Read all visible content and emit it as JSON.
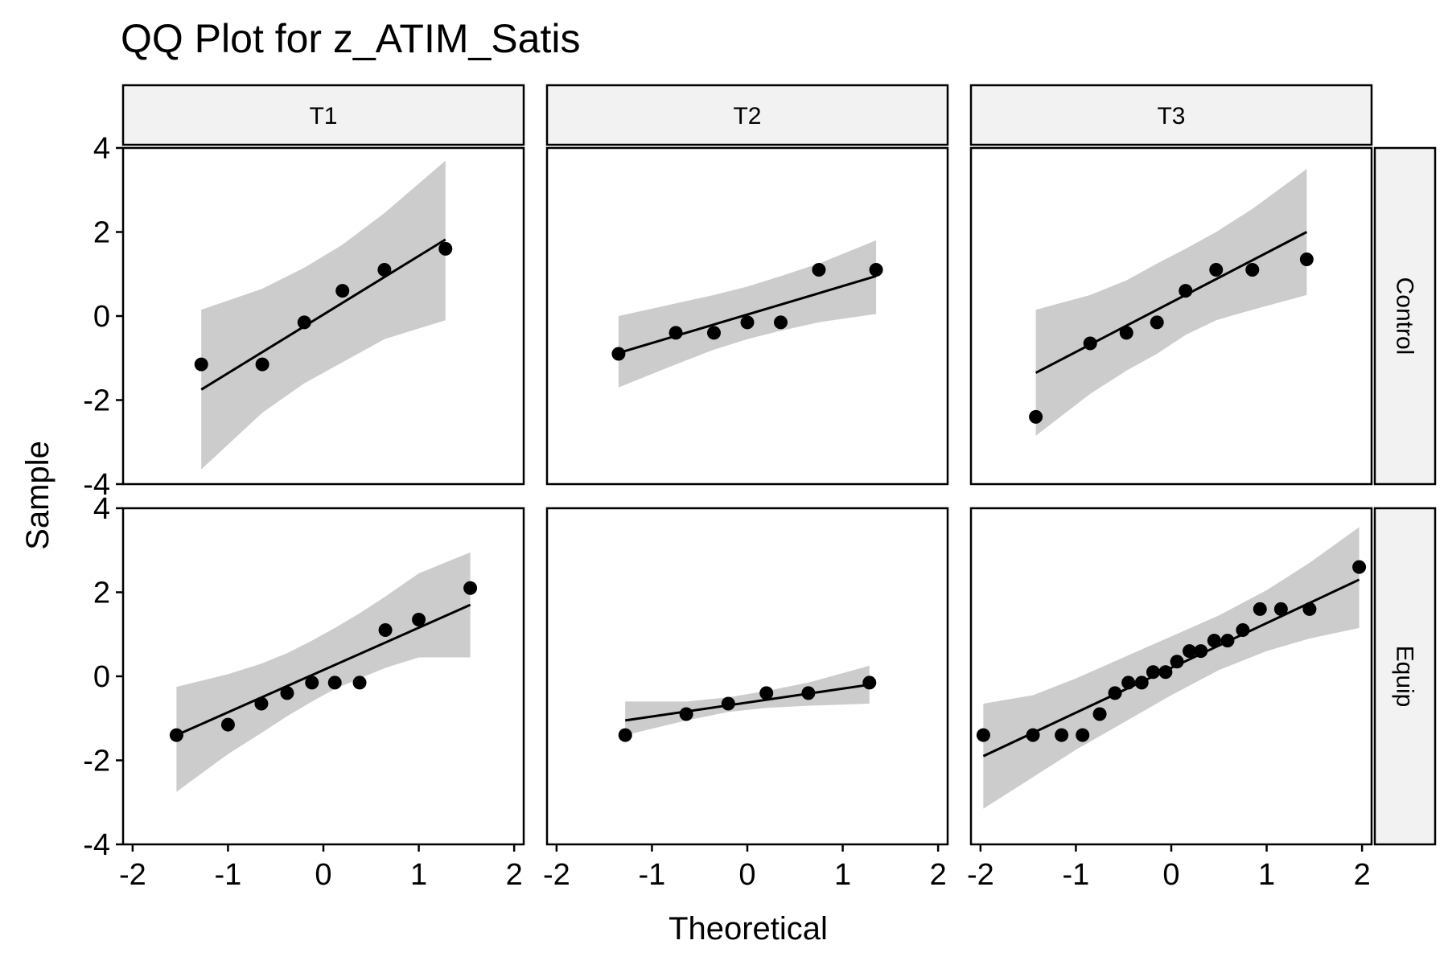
{
  "chart_data": {
    "type": "scatter",
    "title": "QQ Plot for z_ATIM_Satis",
    "xlabel": "Theoretical",
    "ylabel": "Sample",
    "xlim": [
      -2.1,
      2.1
    ],
    "ylim": [
      -4,
      4
    ],
    "x_ticks": [
      -2,
      -1,
      0,
      1,
      2
    ],
    "x_tick_labels": [
      "-2",
      "-1",
      "0",
      "1",
      "2"
    ],
    "y_ticks": [
      -4,
      -2,
      0,
      2,
      4
    ],
    "y_tick_labels": [
      "-4",
      "-2",
      "0",
      "2",
      "4"
    ],
    "column_facets": [
      "T1",
      "T2",
      "T3"
    ],
    "row_facets": [
      "Control",
      "Equip"
    ],
    "grid": false,
    "colors": {
      "points": "#000000",
      "line": "#000000",
      "band": "#cccccc",
      "strip": "#f2f2f2"
    },
    "panels": [
      {
        "row": "Control",
        "col": "T1",
        "points": [
          [
            -1.28,
            -1.15
          ],
          [
            -0.64,
            -1.15
          ],
          [
            -0.2,
            -0.15
          ],
          [
            0.2,
            0.6
          ],
          [
            0.64,
            1.1
          ],
          [
            1.28,
            1.6
          ]
        ],
        "line": [
          [
            -1.28,
            -1.75
          ],
          [
            1.28,
            1.82
          ]
        ],
        "band_x": [
          -1.28,
          -0.64,
          -0.2,
          0.2,
          0.64,
          1.28
        ],
        "band_lower": [
          -3.65,
          -2.3,
          -1.6,
          -1.1,
          -0.55,
          -0.1
        ],
        "band_upper": [
          0.15,
          0.65,
          1.15,
          1.7,
          2.45,
          3.7
        ]
      },
      {
        "row": "Control",
        "col": "T2",
        "points": [
          [
            -1.35,
            -0.9
          ],
          [
            -0.75,
            -0.4
          ],
          [
            -0.35,
            -0.4
          ],
          [
            0.0,
            -0.15
          ],
          [
            0.35,
            -0.15
          ],
          [
            0.75,
            1.1
          ],
          [
            1.35,
            1.1
          ]
        ],
        "line": [
          [
            -1.35,
            -0.88
          ],
          [
            1.35,
            0.95
          ]
        ],
        "band_x": [
          -1.35,
          -0.75,
          -0.35,
          0.0,
          0.35,
          0.75,
          1.35
        ],
        "band_lower": [
          -1.7,
          -1.15,
          -0.8,
          -0.55,
          -0.35,
          -0.15,
          0.05
        ],
        "band_upper": [
          0.0,
          0.3,
          0.5,
          0.7,
          0.95,
          1.25,
          1.8
        ]
      },
      {
        "row": "Control",
        "col": "T3",
        "points": [
          [
            -1.42,
            -2.4
          ],
          [
            -0.85,
            -0.65
          ],
          [
            -0.47,
            -0.4
          ],
          [
            -0.15,
            -0.15
          ],
          [
            0.15,
            0.6
          ],
          [
            0.47,
            1.1
          ],
          [
            0.85,
            1.1
          ],
          [
            1.42,
            1.35
          ]
        ],
        "line": [
          [
            -1.42,
            -1.35
          ],
          [
            1.42,
            2.0
          ]
        ],
        "band_x": [
          -1.42,
          -0.85,
          -0.47,
          -0.15,
          0.15,
          0.47,
          0.85,
          1.42
        ],
        "band_lower": [
          -2.85,
          -1.85,
          -1.3,
          -0.9,
          -0.45,
          -0.1,
          0.15,
          0.5
        ],
        "band_upper": [
          0.15,
          0.5,
          0.85,
          1.25,
          1.6,
          2.0,
          2.55,
          3.5
        ]
      },
      {
        "row": "Equip",
        "col": "T1",
        "points": [
          [
            -1.54,
            -1.4
          ],
          [
            -1.0,
            -1.15
          ],
          [
            -0.65,
            -0.65
          ],
          [
            -0.38,
            -0.4
          ],
          [
            -0.12,
            -0.15
          ],
          [
            0.12,
            -0.15
          ],
          [
            0.38,
            -0.15
          ],
          [
            0.65,
            1.1
          ],
          [
            1.0,
            1.35
          ],
          [
            1.54,
            2.1
          ]
        ],
        "line": [
          [
            -1.54,
            -1.4
          ],
          [
            1.54,
            1.7
          ]
        ],
        "band_x": [
          -1.54,
          -1.0,
          -0.65,
          -0.38,
          -0.12,
          0.12,
          0.38,
          0.65,
          1.0,
          1.54
        ],
        "band_lower": [
          -2.75,
          -1.85,
          -1.35,
          -0.95,
          -0.6,
          -0.3,
          -0.05,
          0.2,
          0.45,
          0.45
        ],
        "band_upper": [
          -0.25,
          0.05,
          0.3,
          0.55,
          0.85,
          1.15,
          1.5,
          1.9,
          2.45,
          2.95
        ]
      },
      {
        "row": "Equip",
        "col": "T2",
        "points": [
          [
            -1.28,
            -1.4
          ],
          [
            -0.64,
            -0.9
          ],
          [
            -0.2,
            -0.65
          ],
          [
            0.2,
            -0.4
          ],
          [
            0.64,
            -0.4
          ],
          [
            1.28,
            -0.15
          ]
        ],
        "line": [
          [
            -1.28,
            -1.05
          ],
          [
            1.28,
            -0.2
          ]
        ],
        "band_x": [
          -1.28,
          -0.64,
          -0.2,
          0.2,
          0.64,
          1.28
        ],
        "band_lower": [
          -1.4,
          -1.05,
          -0.85,
          -0.75,
          -0.7,
          -0.65
        ],
        "band_upper": [
          -0.6,
          -0.6,
          -0.5,
          -0.35,
          -0.15,
          0.25
        ]
      },
      {
        "row": "Equip",
        "col": "T3",
        "points": [
          [
            -1.97,
            -1.4
          ],
          [
            -1.45,
            -1.4
          ],
          [
            -1.15,
            -1.4
          ],
          [
            -0.93,
            -1.4
          ],
          [
            -0.75,
            -0.9
          ],
          [
            -0.59,
            -0.4
          ],
          [
            -0.45,
            -0.15
          ],
          [
            -0.31,
            -0.15
          ],
          [
            -0.19,
            0.1
          ],
          [
            -0.06,
            0.1
          ],
          [
            0.06,
            0.35
          ],
          [
            0.19,
            0.6
          ],
          [
            0.31,
            0.6
          ],
          [
            0.45,
            0.85
          ],
          [
            0.59,
            0.85
          ],
          [
            0.75,
            1.1
          ],
          [
            0.93,
            1.6
          ],
          [
            1.15,
            1.6
          ],
          [
            1.45,
            1.6
          ],
          [
            1.97,
            2.6
          ]
        ],
        "line": [
          [
            -1.97,
            -1.9
          ],
          [
            1.97,
            2.3
          ]
        ],
        "band_x": [
          -1.97,
          -1.45,
          -1.0,
          -0.5,
          0.0,
          0.5,
          1.0,
          1.45,
          1.97
        ],
        "band_lower": [
          -3.15,
          -2.4,
          -1.75,
          -1.1,
          -0.45,
          0.15,
          0.6,
          0.9,
          1.15
        ],
        "band_upper": [
          -0.65,
          -0.45,
          -0.05,
          0.45,
          0.95,
          1.45,
          2.05,
          2.7,
          3.55
        ]
      }
    ]
  }
}
